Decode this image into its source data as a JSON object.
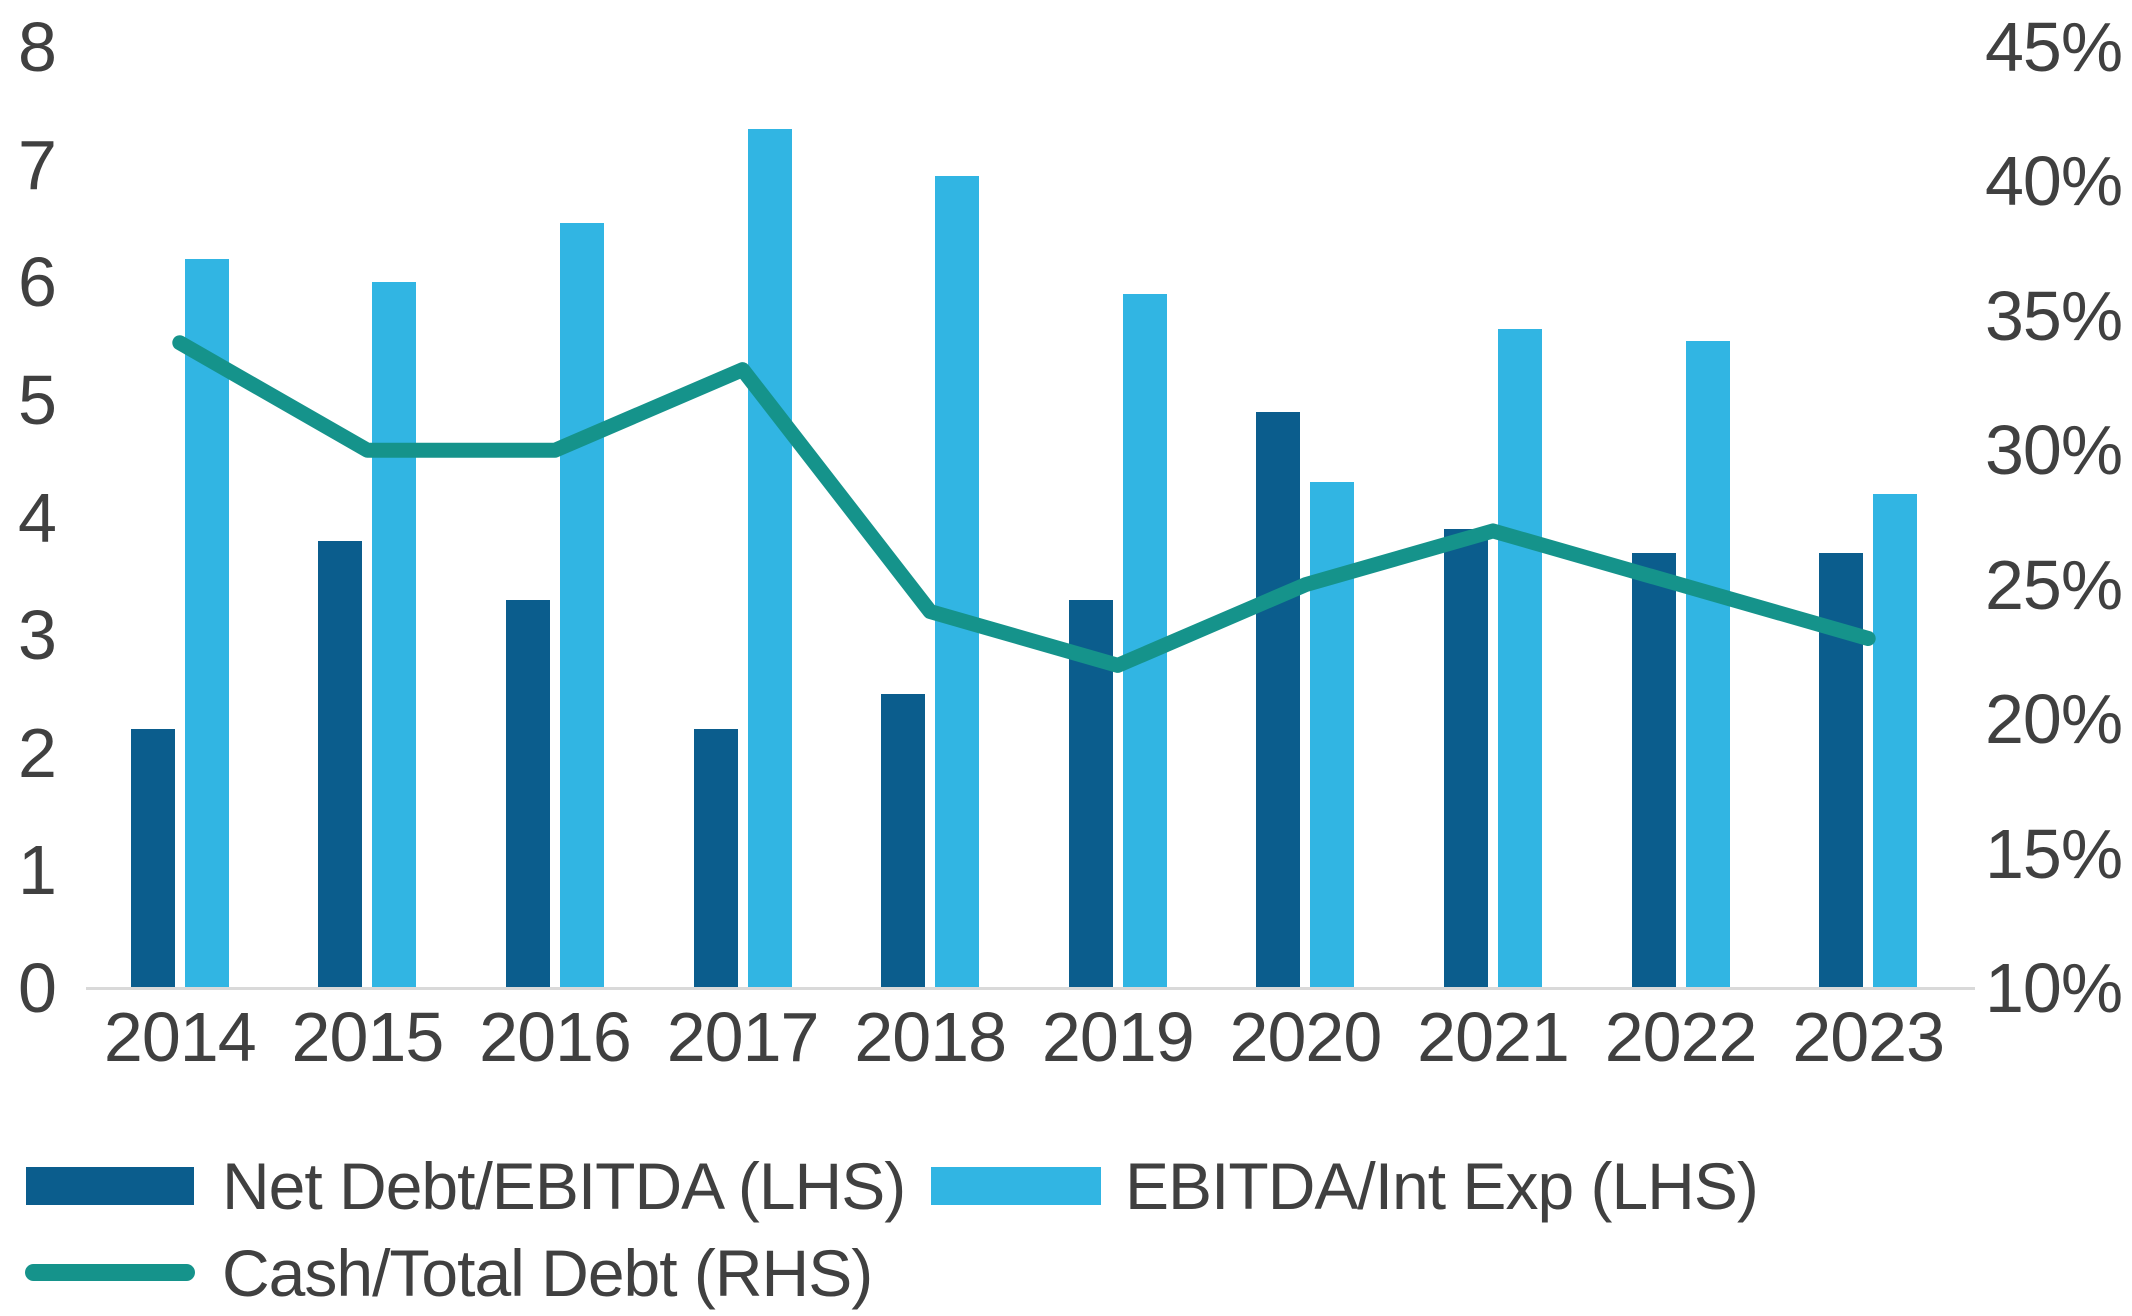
{
  "chart_data": {
    "type": "bar",
    "subtype": "clustered-bars-with-line-dual-axis",
    "categories": [
      "2014",
      "2015",
      "2016",
      "2017",
      "2018",
      "2019",
      "2020",
      "2021",
      "2022",
      "2023"
    ],
    "series": [
      {
        "name": "Net Debt/EBITDA (LHS)",
        "type": "bar",
        "axis": "left",
        "color_key": "dark_blue",
        "values": [
          2.2,
          3.8,
          3.3,
          2.2,
          2.5,
          3.3,
          4.9,
          3.9,
          3.7,
          3.7
        ]
      },
      {
        "name": "EBITDA/Int Exp (LHS)",
        "type": "bar",
        "axis": "left",
        "color_key": "light_blue",
        "values": [
          6.2,
          6.0,
          6.5,
          7.3,
          6.9,
          5.9,
          4.3,
          5.6,
          5.5,
          4.2
        ]
      },
      {
        "name": "Cash/Total Debt (RHS)",
        "type": "line",
        "axis": "right",
        "color_key": "teal",
        "values": [
          34,
          30,
          30,
          33,
          24,
          22,
          25,
          27,
          25,
          23
        ]
      }
    ],
    "left_axis": {
      "min": 0,
      "max": 8,
      "tick_labels": [
        "8",
        "7",
        "6",
        "5",
        "4",
        "3",
        "2",
        "1",
        "0"
      ],
      "tick_values": [
        8,
        7,
        6,
        5,
        4,
        3,
        2,
        1,
        0
      ]
    },
    "right_axis": {
      "min": 10,
      "max": 45,
      "tick_labels": [
        "45%",
        "40%",
        "35%",
        "30%",
        "25%",
        "20%",
        "15%",
        "10%"
      ],
      "tick_values": [
        45,
        40,
        35,
        30,
        25,
        20,
        15,
        10
      ]
    },
    "title": "",
    "xlabel": "",
    "ylabel": "",
    "grid": false,
    "legend_position": "bottom-left"
  },
  "legend": {
    "items": [
      {
        "label": "Net Debt/EBITDA (LHS)",
        "swatch": "rect",
        "color_key": "dark_blue"
      },
      {
        "label": "EBITDA/Int Exp (LHS)",
        "swatch": "rect",
        "color_key": "light_blue"
      },
      {
        "label": "Cash/Total Debt (RHS)",
        "swatch": "line",
        "color_key": "teal"
      }
    ]
  },
  "colors": {
    "dark_blue": "#0B5D8D",
    "light_blue": "#31B5E3",
    "teal": "#15938B",
    "text": "#404040",
    "axis_line": "#D9D9D9",
    "background": "#FFFFFF"
  }
}
